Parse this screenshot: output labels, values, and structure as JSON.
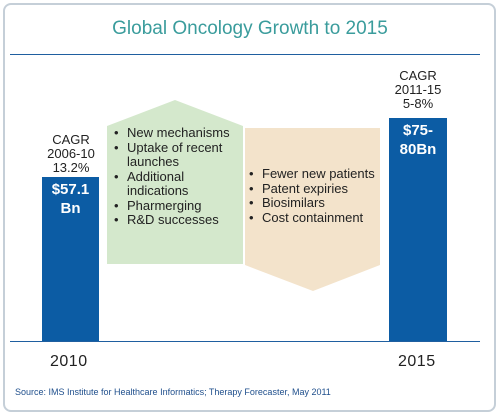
{
  "chart_data": {
    "type": "bar",
    "title": "Global Oncology Growth to 2015",
    "categories": [
      "2010",
      "2015"
    ],
    "bars": [
      {
        "year": "2010",
        "label": "$57.1 Bn",
        "label_lines": [
          "$57.1",
          "Bn"
        ],
        "value_bn": 57.1,
        "cagr_lines": [
          "CAGR",
          "2006-10",
          "13.2%"
        ]
      },
      {
        "year": "2015",
        "label": "$75-80Bn",
        "label_lines": [
          "$75-",
          "80Bn"
        ],
        "value_bn": 77.5,
        "cagr_lines": [
          "CAGR",
          "2011-15",
          "5-8%"
        ]
      }
    ],
    "growth_drivers": [
      "New mechanisms",
      "Uptake of recent launches",
      "Additional indications",
      "Pharmerging",
      "R&D successes"
    ],
    "growth_detractors": [
      "Fewer new patients",
      "Patent expiries",
      "Biosimilars",
      "Cost containment"
    ],
    "colors": {
      "bar": "#0c5ca4",
      "up_arrow": "#d4e8cc",
      "down_arrow": "#f3e3cb",
      "title": "#3a9c9c",
      "rule": "#1f5fa0"
    }
  },
  "source": "Source: IMS Institute for Healthcare Informatics; Therapy Forecaster, May 2011"
}
